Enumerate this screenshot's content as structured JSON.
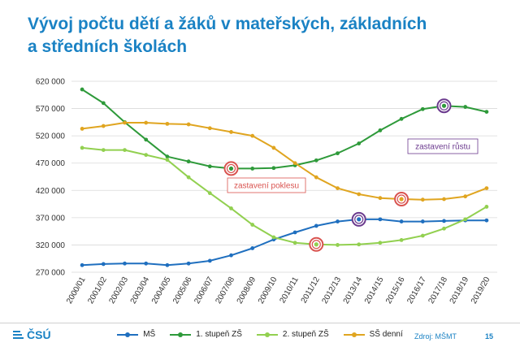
{
  "title": {
    "line1": "Vývoj počtu dětí a žáků v mateřských, základních",
    "line2": "a středních školách"
  },
  "chart_data": {
    "type": "line",
    "categories": [
      "2000/01",
      "2001/02",
      "2002/03",
      "2003/04",
      "2004/05",
      "2005/06",
      "2006/07",
      "2007/08",
      "2008/09",
      "2009/10",
      "2010/11",
      "2011/12",
      "2012/13",
      "2013/14",
      "2014/15",
      "2015/16",
      "2016/17",
      "2017/18",
      "2018/19",
      "2019/20"
    ],
    "series": [
      {
        "name": "MŠ",
        "color": "#1f6fbf",
        "values": [
          283000,
          285000,
          286000,
          286000,
          283000,
          286000,
          291000,
          301000,
          314000,
          330000,
          343000,
          355000,
          363000,
          367000,
          367000,
          363000,
          363000,
          364000,
          365000,
          365000
        ]
      },
      {
        "name": "1. stupeň ZŠ",
        "color": "#2e9a3a",
        "values": [
          605000,
          580000,
          545000,
          513000,
          482000,
          473000,
          464000,
          460000,
          460000,
          461000,
          466000,
          475000,
          488000,
          506000,
          530000,
          551000,
          569000,
          575000,
          573000,
          564000
        ]
      },
      {
        "name": "2. stupeň ZŠ",
        "color": "#92d050",
        "values": [
          498000,
          494000,
          494000,
          485000,
          476000,
          444000,
          415000,
          387000,
          357000,
          334000,
          324000,
          321000,
          320000,
          321000,
          324000,
          329000,
          337000,
          350000,
          367000,
          390000
        ]
      },
      {
        "name": "SŠ denní",
        "color": "#e0a520",
        "values": [
          533000,
          538000,
          544000,
          544000,
          542000,
          541000,
          534000,
          527000,
          520000,
          498000,
          470000,
          444000,
          424000,
          413000,
          406000,
          404000,
          403000,
          404000,
          409000,
          424000
        ]
      }
    ],
    "ylim": [
      270000,
      620000
    ],
    "yticks": [
      "270 000",
      "320 000",
      "370 000",
      "420 000",
      "470 000",
      "520 000",
      "570 000",
      "620 000"
    ],
    "grid": true,
    "legend_position": "bottom",
    "annotations": [
      {
        "text": "zastavení poklesu",
        "color": "#d9534f"
      },
      {
        "text": "zastavení růstu",
        "color": "#6b3a8e"
      }
    ],
    "markers": [
      {
        "series": "1. stupeň ZŠ",
        "category": "2007/08",
        "color": "#d9534f"
      },
      {
        "series": "2. stupeň ZŠ",
        "category": "2011/12",
        "color": "#d9534f"
      },
      {
        "series": "SŠ denní",
        "category": "2015/16",
        "color": "#d9534f"
      },
      {
        "series": "MŠ",
        "category": "2013/14",
        "color": "#6b3a8e"
      },
      {
        "series": "1. stupeň ZŠ",
        "category": "2017/18",
        "color": "#6b3a8e"
      }
    ]
  },
  "footer": {
    "logo_text": "ČSÚ",
    "source": "Zdroj: MŠMT",
    "page_number": "15"
  }
}
